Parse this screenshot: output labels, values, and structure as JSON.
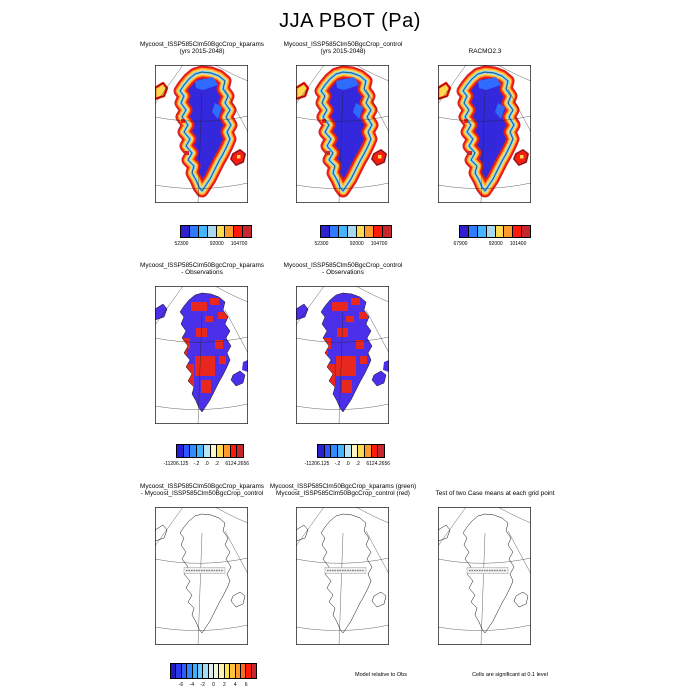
{
  "title": "JJA PBOT (Pa)",
  "row1": {
    "panels": [
      {
        "title": [
          "Mycoost_ISSP585Clm50BgcCrop_kparams",
          "(yrs 2015-2048)"
        ],
        "colorbar": {
          "ticks": [
            {
              "label": "52300",
              "pos": 0.02
            },
            {
              "label": "92000",
              "pos": 0.51
            },
            {
              "label": "104700",
              "pos": 0.82
            }
          ]
        }
      },
      {
        "title": [
          "Mycoost_ISSP585Clm50BgcCrop_control",
          "(yrs 2015-2048)"
        ],
        "colorbar": {
          "ticks": [
            {
              "label": "52300",
              "pos": 0.02
            },
            {
              "label": "92000",
              "pos": 0.51
            },
            {
              "label": "104700",
              "pos": 0.82
            }
          ]
        }
      },
      {
        "title": [
          "RACMO2.3"
        ],
        "colorbar": {
          "ticks": [
            {
              "label": "67900",
              "pos": 0.02
            },
            {
              "label": "92000",
              "pos": 0.51
            },
            {
              "label": "101400",
              "pos": 0.82
            }
          ]
        }
      }
    ],
    "palette": [
      "#2f1fd1",
      "#2f7bff",
      "#45b4ff",
      "#a8d8f0",
      "#ffd94f",
      "#ff9a2e",
      "#ff1a0a",
      "#c8262e"
    ]
  },
  "row2": {
    "panels": [
      {
        "title": [
          "Mycoost_ISSP585Clm50BgcCrop_kparams",
          "- Observations"
        ]
      },
      {
        "title": [
          "Mycoost_ISSP585Clm50BgcCrop_control",
          "- Observations"
        ]
      }
    ],
    "palette": [
      "#2a1fd0",
      "#2f55ff",
      "#2f8cff",
      "#45b4ff",
      "#b9e6f7",
      "#fdf6c4",
      "#ffd94f",
      "#ff9a2e",
      "#ff1a0a",
      "#c8262e"
    ],
    "ticks": [
      {
        "label": "-11206.125",
        "pos": 0.0
      },
      {
        "label": "-.2",
        "pos": 0.3
      },
      {
        "label": ".0",
        "pos": 0.45
      },
      {
        "label": ".2",
        "pos": 0.6
      },
      {
        "label": "6124.2656",
        "pos": 0.9
      }
    ]
  },
  "row3": {
    "panels": [
      {
        "title": [
          "Mycoost_ISSP585Clm50BgcCrop_kparams",
          "- Mycoost_ISSP585Clm50BgcCrop_control"
        ]
      },
      {
        "title": [
          "Mycoost_ISSP585Clm50BgcCrop_kparams (green)",
          "Mycoost_ISSP585Clm50BgcCrop_control (red)"
        ]
      },
      {
        "title": [
          "Test of two Case means at each grid point"
        ]
      }
    ],
    "palette": [
      "#201bc0",
      "#2a3ae8",
      "#2f5cff",
      "#2f84ff",
      "#3fb0ff",
      "#6cc8ff",
      "#a5ddf6",
      "#d5eef5",
      "#f2f5d8",
      "#fdf0b0",
      "#ffe44f",
      "#ffc43f",
      "#ff9a2e",
      "#ff6a1f",
      "#ff1a0a",
      "#c8262e"
    ],
    "ticks": [
      {
        "label": "-6",
        "pos": 0.125
      },
      {
        "label": "-4",
        "pos": 0.25
      },
      {
        "label": "-2",
        "pos": 0.375
      },
      {
        "label": "0",
        "pos": 0.5
      },
      {
        "label": "2",
        "pos": 0.625
      },
      {
        "label": "4",
        "pos": 0.75
      },
      {
        "label": "6",
        "pos": 0.875
      }
    ]
  },
  "footer": {
    "model_note": "Model relative to Obs",
    "sig_note": "Cells are significant at 0.1 level"
  },
  "map_colors": {
    "row1_interior": "#3328dc",
    "row1_interior2": "#2f6bff",
    "row2_base": "#4a30e8",
    "row2_anom": "#e8281e",
    "band_darkred": "#c8262e",
    "band_red": "#ff1a0a",
    "band_orange": "#ff9a2e",
    "band_yellow": "#ffd94f",
    "band_pale": "#a8d8f0",
    "band_sky": "#45b4ff",
    "outline": "#111111",
    "grid": "#222222"
  },
  "chart_data": {
    "type": "heatmap",
    "title": "JJA PBOT (Pa)",
    "layout": "3 rows of Greenland map panels with discrete colorbars; grid on each map; legend colorbars below panels",
    "panels": [
      {
        "row": 1,
        "name": "Mycoost_ISSP585Clm50BgcCrop_kparams",
        "subtitle": "(yrs 2015-2048)",
        "colorbar": {
          "n_colors": 8,
          "ticks": [
            52300,
            92000,
            104700
          ]
        }
      },
      {
        "row": 1,
        "name": "Mycoost_ISSP585Clm50BgcCrop_control",
        "subtitle": "(yrs 2015-2048)",
        "colorbar": {
          "n_colors": 8,
          "ticks": [
            52300,
            92000,
            104700
          ]
        }
      },
      {
        "row": 1,
        "name": "RACMO2.3",
        "colorbar": {
          "n_colors": 8,
          "ticks": [
            67900,
            92000,
            101400
          ]
        }
      },
      {
        "row": 2,
        "name": "Mycoost_ISSP585Clm50BgcCrop_kparams - Observations",
        "colorbar": {
          "n_colors": 10,
          "ticks": [
            -11206.125,
            -0.2,
            0.0,
            0.2,
            6124.2656
          ]
        }
      },
      {
        "row": 2,
        "name": "Mycoost_ISSP585Clm50BgcCrop_control - Observations",
        "colorbar": {
          "n_colors": 10,
          "ticks": [
            -11206.125,
            -0.2,
            0.0,
            0.2,
            6124.2656
          ]
        }
      },
      {
        "row": 3,
        "name": "Mycoost_ISSP585Clm50BgcCrop_kparams - Mycoost_ISSP585Clm50BgcCrop_control",
        "colorbar": null
      },
      {
        "row": 3,
        "name": "Mycoost_ISSP585Clm50BgcCrop_kparams (green) / Mycoost_ISSP585Clm50BgcCrop_control (red)",
        "colorbar": null
      },
      {
        "row": 3,
        "name": "Test of two Case means at each grid point",
        "colorbar": {
          "n_colors": 16,
          "ticks": [
            -6,
            -4,
            -2,
            0,
            2,
            4,
            6
          ]
        }
      }
    ],
    "notes": [
      "Model relative to Obs",
      "Cells are significant at 0.1 level"
    ]
  }
}
